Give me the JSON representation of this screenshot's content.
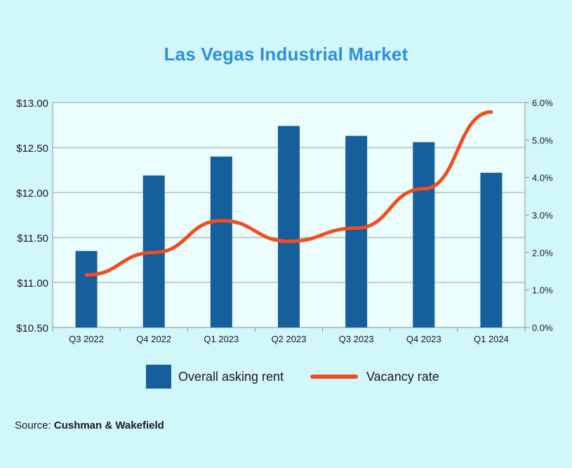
{
  "title": "Las Vegas Industrial Market",
  "colors": {
    "bar": "#155f9c",
    "line": "#f04e1e",
    "title": "#2b8fe0",
    "plot_bg": "#ecfdfd",
    "page_bg": "#d2f7fb"
  },
  "legend": {
    "bar_label": "Overall asking rent",
    "line_label": "Vacancy rate"
  },
  "source": {
    "prefix": "Source:",
    "name": "Cushman & Wakefield"
  },
  "chart_data": {
    "type": "bar",
    "categories": [
      "Q3 2022",
      "Q4 2022",
      "Q1 2023",
      "Q2 2023",
      "Q3 2023",
      "Q4 2023",
      "Q1 2024"
    ],
    "series": [
      {
        "name": "Overall asking rent",
        "type": "bar",
        "axis": "left",
        "values": [
          11.35,
          12.19,
          12.4,
          12.74,
          12.63,
          12.56,
          12.22
        ]
      },
      {
        "name": "Vacancy rate",
        "type": "line",
        "axis": "right",
        "values": [
          1.4,
          2.0,
          2.85,
          2.3,
          2.65,
          3.7,
          5.75
        ]
      }
    ],
    "y_left": {
      "min": 10.5,
      "max": 13.0,
      "ticks": [
        "$10.50",
        "$11.00",
        "$11.50",
        "$12.00",
        "$12.50",
        "$13.00"
      ]
    },
    "y_right": {
      "min": 0,
      "max": 6,
      "ticks": [
        "0.0%",
        "1.0%",
        "2.0%",
        "3.0%",
        "4.0%",
        "5.0%",
        "6.0%"
      ]
    },
    "grid": true,
    "legend_position": "bottom"
  }
}
